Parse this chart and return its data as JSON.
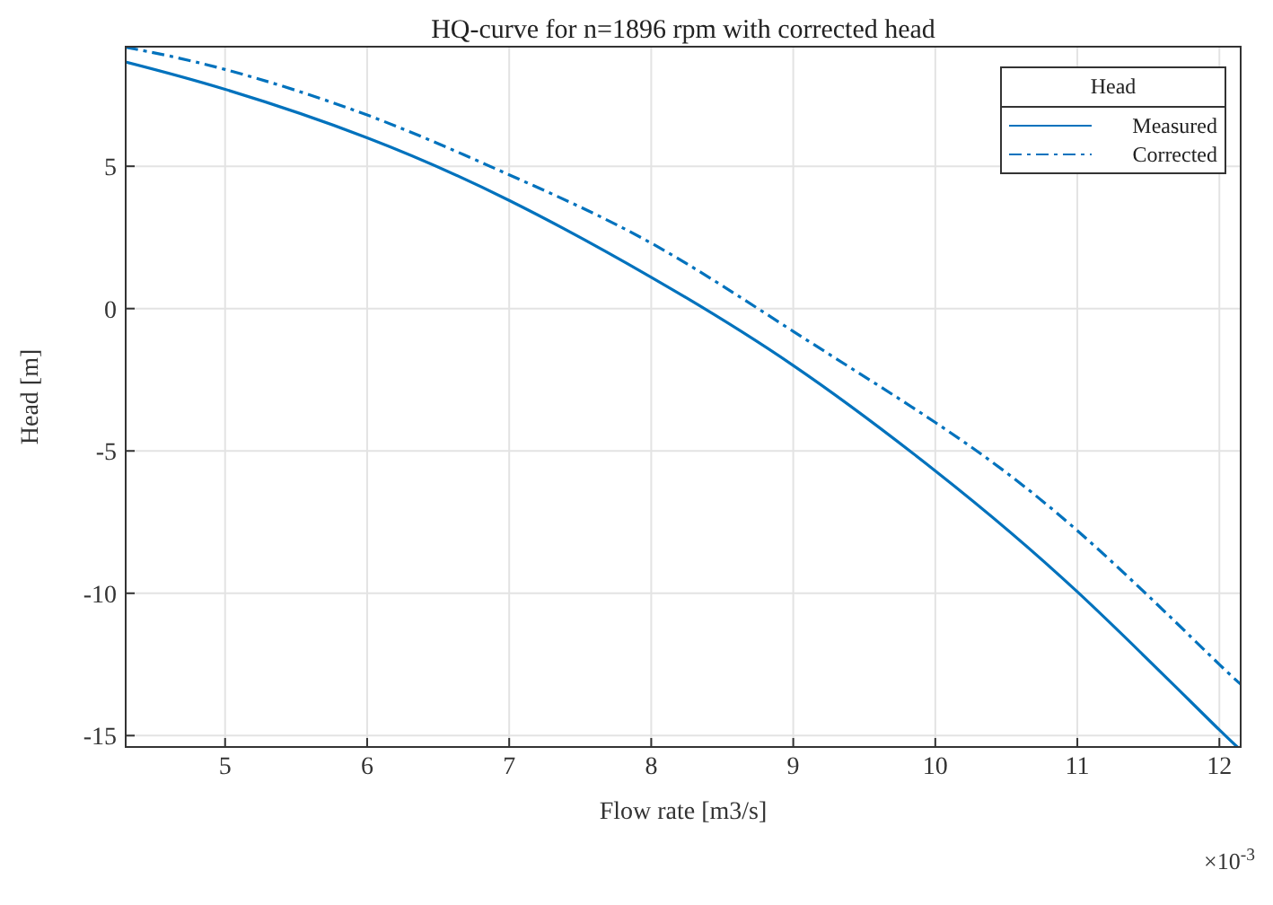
{
  "chart_data": {
    "type": "line",
    "title": "HQ-curve for n=1896 rpm with corrected head",
    "xlabel": "Flow rate [m3/s]",
    "ylabel": "Head [m]",
    "legend_title": "Head",
    "annotations": [
      "×10$^{-3}$"
    ],
    "xlim": [
      4.3,
      12.15
    ],
    "ylim": [
      -15.4,
      9.2
    ],
    "xticks": [
      5,
      6,
      7,
      8,
      9,
      10,
      11,
      12
    ],
    "yticks": [
      -15,
      -10,
      -5,
      0,
      5
    ],
    "grid": true,
    "legend": "top right",
    "marker": "none",
    "series": [
      {
        "name": "Measured",
        "color": "#0072bd",
        "line_style": "solid",
        "x": [
          4.3,
          5,
          6,
          7,
          8,
          9,
          10,
          11,
          12,
          12.15
        ],
        "values": [
          8.66,
          7.7,
          6.0,
          3.8,
          1.1,
          -2.0,
          -5.7,
          -9.95,
          -14.8,
          -15.4
        ]
      },
      {
        "name": "Corrected",
        "color": "#0072bd",
        "line_style": "dashed",
        "x": [
          4.3,
          5,
          6,
          7,
          8,
          9,
          10,
          11,
          12,
          12.15
        ],
        "values": [
          9.18,
          8.4,
          6.8,
          4.7,
          2.3,
          -0.8,
          -4.0,
          -7.8,
          -12.5,
          -13.1
        ]
      }
    ]
  }
}
